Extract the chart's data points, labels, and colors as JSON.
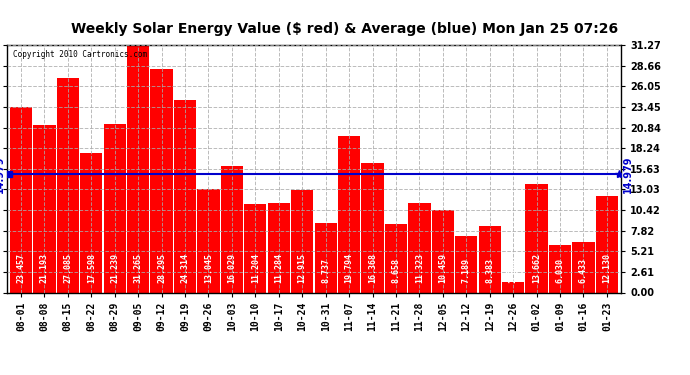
{
  "title": "Weekly Solar Energy Value ($ red) & Average (blue) Mon Jan 25 07:26",
  "copyright": "Copyright 2010 Cartronics.com",
  "categories": [
    "08-01",
    "08-08",
    "08-15",
    "08-22",
    "08-29",
    "09-05",
    "09-12",
    "09-19",
    "09-26",
    "10-03",
    "10-10",
    "10-17",
    "10-24",
    "10-31",
    "11-07",
    "11-14",
    "11-21",
    "11-28",
    "12-05",
    "12-12",
    "12-19",
    "12-26",
    "01-02",
    "01-09",
    "01-16",
    "01-23"
  ],
  "values": [
    23.457,
    21.193,
    27.085,
    17.598,
    21.239,
    31.265,
    28.295,
    24.314,
    13.045,
    16.029,
    11.204,
    11.284,
    12.915,
    8.737,
    19.794,
    16.368,
    8.658,
    11.323,
    10.459,
    7.189,
    8.383,
    1.364,
    13.662,
    6.03,
    6.433,
    12.13
  ],
  "average": 14.979,
  "bar_color": "#ff0000",
  "avg_color": "#0000cc",
  "background_color": "#ffffff",
  "plot_bg_color": "#ffffff",
  "grid_color": "#aaaaaa",
  "yticks": [
    0.0,
    2.61,
    5.21,
    7.82,
    10.42,
    13.03,
    15.63,
    18.24,
    20.84,
    23.45,
    26.05,
    28.66,
    31.27
  ],
  "ylim": [
    0.0,
    31.27
  ],
  "title_fontsize": 10,
  "bar_label_fontsize": 6,
  "tick_fontsize": 7,
  "avg_label": "14.979",
  "avg_label_fontsize": 7
}
